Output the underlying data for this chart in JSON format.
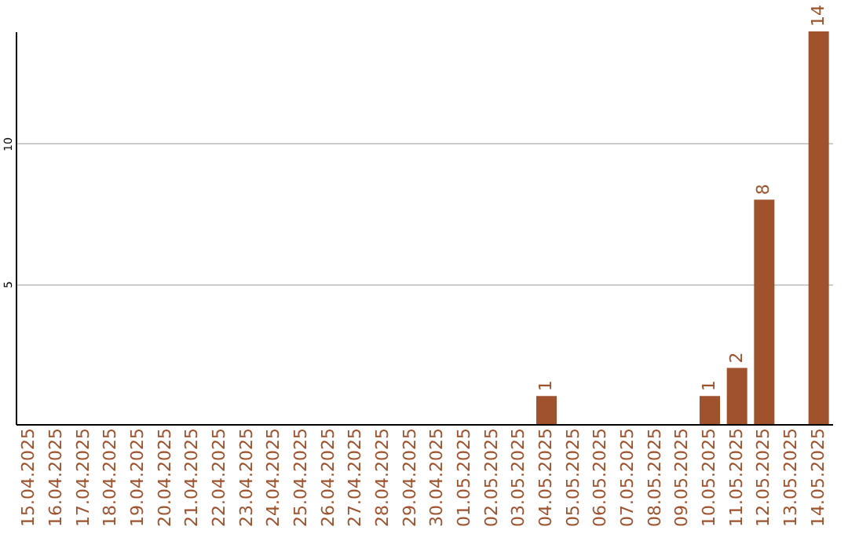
{
  "chart_data": {
    "type": "bar",
    "categories": [
      "15.04.2025",
      "16.04.2025",
      "17.04.2025",
      "18.04.2025",
      "19.04.2025",
      "20.04.2025",
      "21.04.2025",
      "22.04.2025",
      "23.04.2025",
      "24.04.2025",
      "25.04.2025",
      "26.04.2025",
      "27.04.2025",
      "28.04.2025",
      "29.04.2025",
      "30.04.2025",
      "01.05.2025",
      "02.05.2025",
      "03.05.2025",
      "04.05.2025",
      "05.05.2025",
      "06.05.2025",
      "07.05.2025",
      "08.05.2025",
      "09.05.2025",
      "10.05.2025",
      "11.05.2025",
      "12.05.2025",
      "13.05.2025",
      "14.05.2025"
    ],
    "values": [
      0,
      0,
      0,
      0,
      0,
      0,
      0,
      0,
      0,
      0,
      0,
      0,
      0,
      0,
      0,
      0,
      0,
      0,
      0,
      1,
      0,
      0,
      0,
      0,
      0,
      1,
      2,
      8,
      0,
      14
    ],
    "value_labels": [
      null,
      null,
      null,
      null,
      null,
      null,
      null,
      null,
      null,
      null,
      null,
      null,
      null,
      null,
      null,
      null,
      null,
      null,
      null,
      "1",
      null,
      null,
      null,
      null,
      null,
      "1",
      "2",
      "8",
      null,
      "14"
    ],
    "color": "#a0522d",
    "ylim": [
      0,
      14
    ],
    "yticks": [
      5,
      10
    ],
    "grid": "y"
  }
}
